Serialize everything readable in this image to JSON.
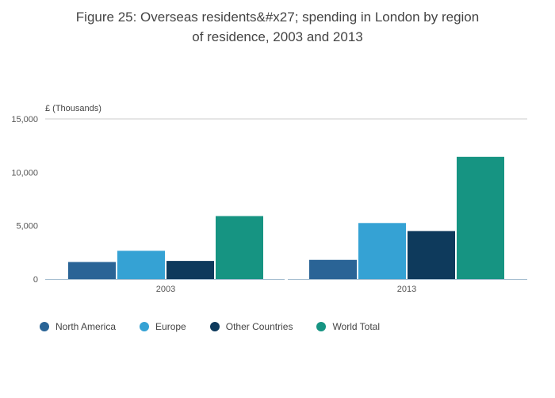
{
  "title": "Figure 25: Overseas residents&#x27; spending in London by region of residence, 2003 and 2013",
  "chart_data": {
    "type": "bar",
    "title": "Figure 25: Overseas residents&#x27; spending in London by region of residence, 2003 and 2013",
    "ylabel": "£ (Thousands)",
    "xlabel": "",
    "categories": [
      "2003",
      "2013"
    ],
    "series": [
      {
        "name": "North America",
        "color": "#2a6496",
        "values": [
          1600,
          1800
        ]
      },
      {
        "name": "Europe",
        "color": "#35a2d4",
        "values": [
          2650,
          5250
        ]
      },
      {
        "name": "Other Countries",
        "color": "#0e3a5c",
        "values": [
          1700,
          4500
        ]
      },
      {
        "name": "World Total",
        "color": "#169482",
        "values": [
          5900,
          11450
        ]
      }
    ],
    "yticks": [
      0,
      5000,
      10000,
      15000
    ],
    "ylim": [
      0,
      15000
    ],
    "grid": false,
    "top_boundary_line_at": 15000,
    "legend_position": "bottom",
    "colors": {
      "axis_line": "#a7bfd1",
      "top_line": "#cccccc",
      "tick_text": "#555555",
      "title_text": "#444444"
    }
  }
}
